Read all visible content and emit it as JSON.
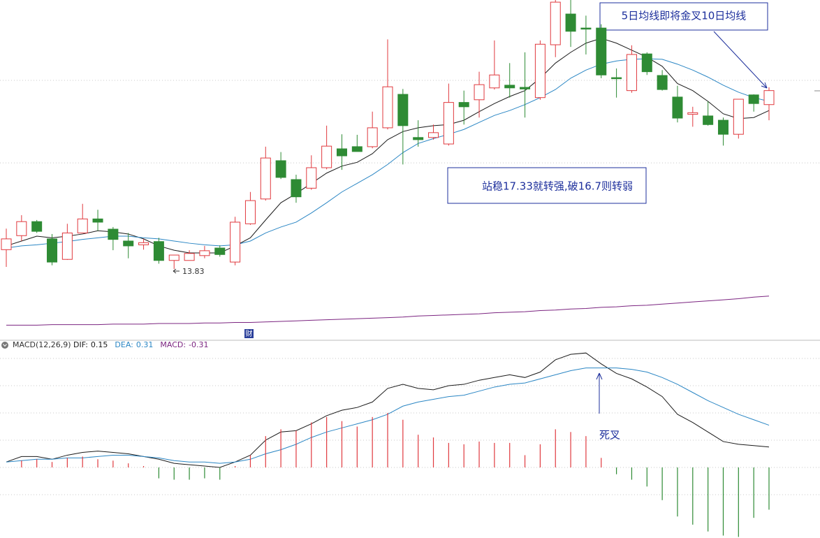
{
  "chart_data": [
    {
      "type": "candlestick",
      "up_color": "#e0393e",
      "down_color": "#2e8b34",
      "open": [
        14.19,
        14.45,
        14.71,
        14.39,
        14.01,
        14.5,
        14.76,
        14.57,
        14.35,
        14.28,
        14.34,
        13.99,
        13.99,
        14.08,
        14.22,
        13.96,
        14.67,
        15.13,
        15.84,
        15.49,
        15.33,
        15.71,
        16.06,
        16.1,
        16.1,
        16.45,
        17.07,
        16.27,
        16.27,
        16.15,
        16.92,
        16.97,
        17.19,
        17.24,
        17.2,
        17.01,
        17.99,
        18.56,
        18.3,
        18.3,
        17.38,
        17.14,
        17.82,
        17.42,
        17.02,
        16.7,
        16.67,
        16.59,
        16.33,
        17.06,
        16.88
      ],
      "high": [
        14.58,
        14.83,
        14.74,
        14.48,
        14.67,
        15.04,
        14.93,
        14.61,
        14.5,
        14.39,
        14.41,
        14.09,
        14.18,
        14.26,
        14.27,
        14.8,
        15.26,
        16.1,
        16.0,
        15.58,
        15.94,
        16.49,
        16.33,
        16.32,
        16.75,
        18.09,
        17.17,
        16.59,
        16.51,
        17.27,
        17.14,
        17.49,
        18.07,
        17.65,
        17.85,
        18.07,
        18.82,
        18.82,
        18.53,
        18.37,
        17.55,
        17.98,
        17.85,
        17.52,
        17.23,
        16.84,
        16.94,
        16.64,
        16.98,
        17.07,
        17.2
      ],
      "low": [
        13.87,
        14.35,
        14.5,
        13.9,
        14.0,
        14.5,
        14.54,
        14.18,
        14.03,
        14.19,
        13.93,
        13.83,
        13.99,
        14.03,
        14.06,
        13.9,
        14.65,
        15.1,
        15.5,
        15.06,
        15.3,
        15.68,
        15.67,
        16.01,
        16.07,
        16.42,
        15.77,
        16.1,
        16.23,
        16.12,
        16.51,
        16.64,
        17.16,
        17.01,
        16.64,
        16.97,
        17.76,
        17.95,
        17.81,
        17.37,
        17.01,
        17.1,
        17.43,
        17.14,
        16.55,
        16.47,
        16.49,
        16.12,
        16.25,
        16.75,
        16.59
      ],
      "close": [
        14.39,
        14.71,
        14.53,
        13.96,
        14.5,
        14.76,
        14.7,
        14.38,
        14.26,
        14.32,
        13.99,
        14.09,
        14.12,
        14.17,
        14.1,
        14.7,
        15.1,
        15.89,
        15.53,
        15.17,
        15.71,
        16.11,
        15.93,
        16.01,
        16.45,
        17.21,
        16.49,
        16.23,
        16.36,
        16.92,
        16.84,
        17.25,
        17.43,
        17.19,
        17.17,
        18.0,
        18.78,
        18.24,
        18.28,
        17.43,
        17.36,
        17.81,
        17.49,
        17.16,
        16.63,
        16.73,
        16.51,
        16.33,
        16.98,
        16.9,
        17.14
      ],
      "series": [
        {
          "color": "#1a1a1a",
          "values": [
            14.26,
            14.35,
            14.44,
            14.41,
            14.44,
            14.48,
            14.54,
            14.52,
            14.48,
            14.39,
            14.26,
            14.18,
            14.13,
            14.13,
            14.13,
            14.26,
            14.41,
            14.74,
            15.06,
            15.23,
            15.42,
            15.61,
            15.74,
            15.81,
            15.97,
            16.23,
            16.38,
            16.45,
            16.49,
            16.51,
            16.59,
            16.75,
            16.9,
            17.03,
            17.14,
            17.37,
            17.65,
            17.85,
            18.02,
            18.11,
            18.02,
            17.89,
            17.76,
            17.59,
            17.27,
            17.14,
            16.94,
            16.71,
            16.62,
            16.64,
            16.77
          ]
        },
        {
          "color": "#2a86c4",
          "values": [
            14.22,
            14.26,
            14.28,
            14.31,
            14.34,
            14.38,
            14.41,
            14.44,
            14.44,
            14.41,
            14.39,
            14.35,
            14.31,
            14.28,
            14.26,
            14.28,
            14.35,
            14.5,
            14.61,
            14.7,
            14.87,
            15.06,
            15.26,
            15.42,
            15.58,
            15.77,
            15.99,
            16.16,
            16.25,
            16.33,
            16.42,
            16.55,
            16.68,
            16.77,
            16.88,
            17.01,
            17.16,
            17.37,
            17.52,
            17.63,
            17.69,
            17.72,
            17.73,
            17.72,
            17.63,
            17.52,
            17.39,
            17.24,
            17.11,
            17.01,
            16.94
          ]
        },
        {
          "color": "#7b2480",
          "values": [
            12.79,
            12.79,
            12.79,
            12.8,
            12.8,
            12.8,
            12.8,
            12.81,
            12.81,
            12.81,
            12.82,
            12.82,
            12.82,
            12.83,
            12.83,
            12.84,
            12.84,
            12.85,
            12.86,
            12.87,
            12.88,
            12.89,
            12.9,
            12.91,
            12.92,
            12.93,
            12.94,
            12.96,
            12.97,
            12.98,
            12.99,
            13.0,
            13.02,
            13.03,
            13.04,
            13.06,
            13.07,
            13.09,
            13.1,
            13.12,
            13.13,
            13.15,
            13.16,
            13.18,
            13.2,
            13.22,
            13.24,
            13.26,
            13.28,
            13.31,
            13.33
          ]
        }
      ],
      "ylim": [
        12.73,
        18.82
      ],
      "gridlines": [
        15.8,
        17.33
      ],
      "annotations": [
        "5日均线即将金叉10日均线",
        "站稳17.33就转强,破16.7则转弱"
      ],
      "icon_label": "财"
    },
    {
      "type": "macd",
      "title": "MACD(12,26,9)",
      "series": [
        {
          "name": "DIF:",
          "color": "#1a1a1a",
          "values": [
            0.04,
            0.08,
            0.08,
            0.06,
            0.09,
            0.11,
            0.12,
            0.11,
            0.1,
            0.08,
            0.06,
            0.03,
            0.02,
            0.01,
            0,
            0.04,
            0.09,
            0.2,
            0.26,
            0.27,
            0.32,
            0.38,
            0.42,
            0.44,
            0.48,
            0.58,
            0.61,
            0.58,
            0.57,
            0.6,
            0.61,
            0.64,
            0.66,
            0.68,
            0.66,
            0.7,
            0.79,
            0.83,
            0.84,
            0.76,
            0.69,
            0.65,
            0.59,
            0.52,
            0.39,
            0.33,
            0.26,
            0.19,
            0.17,
            0.16,
            0.15
          ]
        },
        {
          "name": "DEA:",
          "color": "#2a86c4",
          "values": [
            0.04,
            0.05,
            0.06,
            0.06,
            0.07,
            0.07,
            0.08,
            0.09,
            0.09,
            0.08,
            0.07,
            0.05,
            0.04,
            0.04,
            0.03,
            0.04,
            0.06,
            0.1,
            0.13,
            0.17,
            0.22,
            0.26,
            0.29,
            0.32,
            0.35,
            0.39,
            0.45,
            0.48,
            0.5,
            0.52,
            0.53,
            0.56,
            0.59,
            0.61,
            0.62,
            0.65,
            0.68,
            0.71,
            0.73,
            0.73,
            0.73,
            0.72,
            0.7,
            0.66,
            0.61,
            0.55,
            0.49,
            0.44,
            0.39,
            0.35,
            0.31
          ]
        },
        {
          "name": "MACD:",
          "color": "#7b2480",
          "up_color": "#e0393e",
          "down_color": "#2e8b34",
          "values": [
            0,
            0.05,
            0.06,
            0.04,
            0.07,
            0.08,
            0.06,
            0.05,
            0.03,
            0.01,
            -0.08,
            -0.09,
            -0.09,
            -0.08,
            -0.09,
            0.01,
            0.09,
            0.23,
            0.28,
            0.27,
            0.33,
            0.37,
            0.34,
            0.3,
            0.37,
            0.4,
            0.35,
            0.24,
            0.22,
            0.18,
            0.17,
            0.19,
            0.18,
            0.18,
            0.09,
            0.17,
            0.28,
            0.26,
            0.23,
            0.07,
            -0.05,
            -0.09,
            -0.14,
            -0.24,
            -0.36,
            -0.42,
            -0.47,
            -0.5,
            -0.51,
            -0.37,
            -0.31
          ]
        }
      ],
      "ylim": [
        -0.52,
        0.87
      ],
      "gridlines": [
        -0.2,
        0,
        0.2,
        0.4,
        0.6,
        0.8
      ],
      "annotation": "死叉"
    }
  ]
}
